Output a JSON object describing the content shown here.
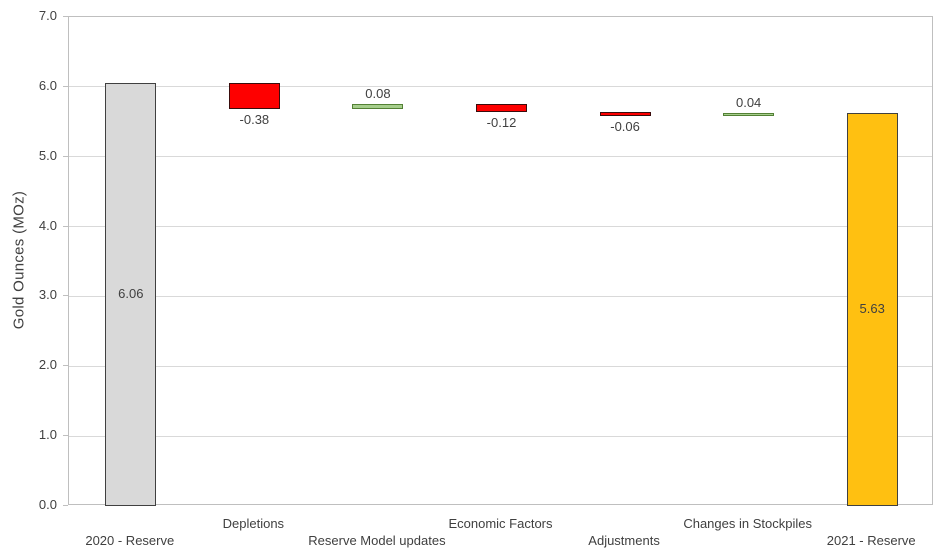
{
  "chart_data": {
    "type": "bar",
    "subtype": "waterfall",
    "title": "",
    "xlabel": "",
    "ylabel": "Gold Ounces (MOz)",
    "ylim": [
      0,
      7
    ],
    "yticks": [
      "0.0",
      "1.0",
      "2.0",
      "3.0",
      "4.0",
      "5.0",
      "6.0",
      "7.0"
    ],
    "grid": "horizontal",
    "legend": "none",
    "categories": [
      "2020 - Reserve",
      "Depletions",
      "Reserve Model updates",
      "Economic Factors",
      "Adjustments",
      "Changes in Stockpiles",
      "2021 - Reserve"
    ],
    "values": [
      6.06,
      -0.38,
      0.08,
      -0.12,
      -0.06,
      0.04,
      5.63
    ],
    "value_labels": [
      "6.06",
      "-0.38",
      "0.08",
      "-0.12",
      "-0.06",
      "0.04",
      "5.63"
    ],
    "roles": [
      "total_start",
      "negative",
      "positive",
      "negative",
      "negative",
      "positive",
      "total_end"
    ],
    "label_positions": [
      "inside",
      "below",
      "above",
      "below",
      "below",
      "above",
      "inside"
    ],
    "styles": {
      "total_start": {
        "fill": "#d9d9d9",
        "border": "#404040"
      },
      "negative": {
        "fill": "#fe0000",
        "border": "#3a0c0c"
      },
      "positive": {
        "fill": "#a6ce8c",
        "border": "#538135"
      },
      "total_end": {
        "fill": "#ffc011",
        "border": "#404040"
      }
    },
    "colors": {
      "text": "#404040",
      "gridline": "#d9d9d9",
      "plot_border": "#bfbfbf",
      "background": "#ffffff"
    }
  }
}
